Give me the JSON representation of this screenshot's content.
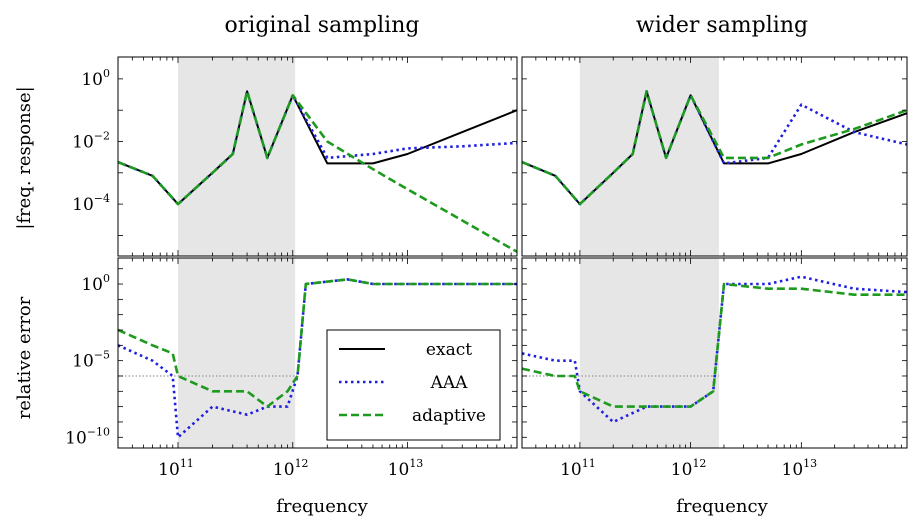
{
  "columns": [
    "original sampling",
    "wider sampling"
  ],
  "row_ylabels": [
    "|freq. response|",
    "relative error"
  ],
  "xlabel": "frequency",
  "x_ticks": [
    {
      "base": "10",
      "exp": "11",
      "value": 100000000000.0
    },
    {
      "base": "10",
      "exp": "12",
      "value": 1000000000000.0
    },
    {
      "base": "10",
      "exp": "13",
      "value": 10000000000000.0
    }
  ],
  "y_ticks_top": [
    {
      "base": "10",
      "exp": "0",
      "value": 1
    },
    {
      "base": "10",
      "exp": "−2",
      "value": 0.01
    },
    {
      "base": "10",
      "exp": "−4",
      "value": 0.0001
    }
  ],
  "y_ticks_bottom": [
    {
      "base": "10",
      "exp": "0",
      "value": 1
    },
    {
      "base": "10",
      "exp": "−5",
      "value": 1e-05
    },
    {
      "base": "10",
      "exp": "−10",
      "value": 1e-10
    }
  ],
  "legend": [
    {
      "label": "exact",
      "color": "#000000",
      "style": "solid"
    },
    {
      "label": "AAA",
      "color": "#1f1fe0",
      "style": "dotted"
    },
    {
      "label": "adaptive",
      "color": "#1e9a1e",
      "style": "dashed"
    }
  ],
  "colors": {
    "exact": "#000000",
    "aaa": "#1f1fe0",
    "adaptive": "#1e9a1e",
    "shade": "#e6e6e6",
    "tolerance": "#999999"
  },
  "chart_data": [
    {
      "type": "line",
      "panel": "original sampling / |freq. response|",
      "xscale": "log",
      "yscale": "log",
      "xlim": [
        30000000000.0,
        90000000000000.0
      ],
      "ylim": [
        2.2e-06,
        5
      ],
      "shaded_x": [
        100000000000.0,
        1050000000000.0
      ],
      "series": [
        {
          "name": "exact",
          "x": [
            30000000000.0,
            60000000000.0,
            100000000000.0,
            200000000000.0,
            300000000000.0,
            400000000000.0,
            600000000000.0,
            1000000000000.0,
            2000000000000.0,
            5000000000000.0,
            10000000000000.0,
            30000000000000.0,
            90000000000000.0
          ],
          "y": [
            0.0022,
            0.0008,
            0.0001,
            0.001,
            0.004,
            0.4,
            0.003,
            0.3,
            0.002,
            0.002,
            0.004,
            0.02,
            0.1
          ]
        },
        {
          "name": "AAA",
          "x": [
            30000000000.0,
            60000000000.0,
            100000000000.0,
            200000000000.0,
            300000000000.0,
            400000000000.0,
            600000000000.0,
            1000000000000.0,
            2000000000000.0,
            5000000000000.0,
            10000000000000.0,
            30000000000000.0,
            90000000000000.0
          ],
          "y": [
            0.0022,
            0.0008,
            0.0001,
            0.001,
            0.004,
            0.4,
            0.003,
            0.3,
            0.003,
            0.004,
            0.006,
            0.007,
            0.009
          ]
        },
        {
          "name": "adaptive",
          "x": [
            30000000000.0,
            60000000000.0,
            100000000000.0,
            200000000000.0,
            300000000000.0,
            400000000000.0,
            600000000000.0,
            1000000000000.0,
            2000000000000.0,
            5000000000000.0,
            10000000000000.0,
            30000000000000.0,
            90000000000000.0
          ],
          "y": [
            0.0022,
            0.0008,
            0.0001,
            0.001,
            0.004,
            0.4,
            0.003,
            0.3,
            0.01,
            0.0013,
            0.0003,
            3e-05,
            3e-06
          ]
        }
      ]
    },
    {
      "type": "line",
      "panel": "wider sampling / |freq. response|",
      "xscale": "log",
      "yscale": "log",
      "xlim": [
        30000000000.0,
        90000000000000.0
      ],
      "ylim": [
        2.2e-06,
        5
      ],
      "shaded_x": [
        100000000000.0,
        1800000000000.0
      ],
      "series": [
        {
          "name": "exact",
          "x": [
            30000000000.0,
            60000000000.0,
            100000000000.0,
            200000000000.0,
            300000000000.0,
            400000000000.0,
            600000000000.0,
            1000000000000.0,
            2000000000000.0,
            5000000000000.0,
            10000000000000.0,
            30000000000000.0,
            90000000000000.0
          ],
          "y": [
            0.0022,
            0.0008,
            0.0001,
            0.001,
            0.004,
            0.4,
            0.003,
            0.3,
            0.002,
            0.002,
            0.004,
            0.02,
            0.08
          ]
        },
        {
          "name": "AAA",
          "x": [
            30000000000.0,
            60000000000.0,
            100000000000.0,
            200000000000.0,
            300000000000.0,
            400000000000.0,
            600000000000.0,
            1000000000000.0,
            2000000000000.0,
            5000000000000.0,
            10000000000000.0,
            30000000000000.0,
            90000000000000.0
          ],
          "y": [
            0.0022,
            0.0008,
            0.0001,
            0.001,
            0.004,
            0.4,
            0.003,
            0.3,
            0.002,
            0.003,
            0.15,
            0.02,
            0.008
          ]
        },
        {
          "name": "adaptive",
          "x": [
            30000000000.0,
            60000000000.0,
            100000000000.0,
            200000000000.0,
            300000000000.0,
            400000000000.0,
            600000000000.0,
            1000000000000.0,
            2000000000000.0,
            5000000000000.0,
            10000000000000.0,
            30000000000000.0,
            90000000000000.0
          ],
          "y": [
            0.0022,
            0.0008,
            0.0001,
            0.001,
            0.004,
            0.4,
            0.003,
            0.3,
            0.003,
            0.003,
            0.008,
            0.025,
            0.1
          ]
        }
      ]
    },
    {
      "type": "line",
      "panel": "original sampling / relative error",
      "xscale": "log",
      "yscale": "log",
      "xlim": [
        30000000000.0,
        90000000000000.0
      ],
      "ylim": [
        2e-11,
        50
      ],
      "shaded_x": [
        100000000000.0,
        1050000000000.0
      ],
      "tolerance": 1e-06,
      "series": [
        {
          "name": "AAA",
          "x": [
            30000000000.0,
            60000000000.0,
            90000000000.0,
            100000000000.0,
            200000000000.0,
            400000000000.0,
            600000000000.0,
            900000000000.0,
            1100000000000.0,
            1300000000000.0,
            3000000000000.0,
            5000000000000.0,
            10000000000000.0,
            30000000000000.0,
            90000000000000.0
          ],
          "y": [
            0.0001,
            1e-05,
            1e-06,
            1e-10,
            1e-08,
            3e-09,
            1e-08,
            1e-08,
            1e-06,
            1,
            2,
            1,
            1,
            1,
            1
          ]
        },
        {
          "name": "adaptive",
          "x": [
            30000000000.0,
            60000000000.0,
            90000000000.0,
            100000000000.0,
            200000000000.0,
            400000000000.0,
            600000000000.0,
            900000000000.0,
            1100000000000.0,
            1300000000000.0,
            3000000000000.0,
            5000000000000.0,
            10000000000000.0,
            30000000000000.0,
            90000000000000.0
          ],
          "y": [
            0.001,
            0.0001,
            3e-05,
            1e-06,
            1e-07,
            1e-07,
            1e-08,
            1e-07,
            1e-06,
            1,
            2,
            1,
            1,
            1,
            1
          ]
        }
      ]
    },
    {
      "type": "line",
      "panel": "wider sampling / relative error",
      "xscale": "log",
      "yscale": "log",
      "xlim": [
        30000000000.0,
        90000000000000.0
      ],
      "ylim": [
        2e-11,
        50
      ],
      "shaded_x": [
        100000000000.0,
        1800000000000.0
      ],
      "tolerance": 1e-06,
      "series": [
        {
          "name": "AAA",
          "x": [
            30000000000.0,
            60000000000.0,
            90000000000.0,
            100000000000.0,
            200000000000.0,
            400000000000.0,
            600000000000.0,
            1000000000000.0,
            1600000000000.0,
            2000000000000.0,
            5000000000000.0,
            10000000000000.0,
            30000000000000.0,
            90000000000000.0
          ],
          "y": [
            3e-05,
            1e-05,
            1e-05,
            1e-07,
            1e-09,
            1e-08,
            1e-08,
            1e-08,
            1e-07,
            1,
            1,
            3,
            0.5,
            0.3
          ]
        },
        {
          "name": "adaptive",
          "x": [
            30000000000.0,
            60000000000.0,
            90000000000.0,
            100000000000.0,
            200000000000.0,
            400000000000.0,
            600000000000.0,
            1000000000000.0,
            1600000000000.0,
            2000000000000.0,
            5000000000000.0,
            10000000000000.0,
            30000000000000.0,
            90000000000000.0
          ],
          "y": [
            3e-06,
            1e-06,
            1e-06,
            1e-07,
            1e-08,
            1e-08,
            1e-08,
            1e-08,
            1e-07,
            1,
            0.5,
            0.5,
            0.2,
            0.2
          ]
        }
      ]
    }
  ]
}
